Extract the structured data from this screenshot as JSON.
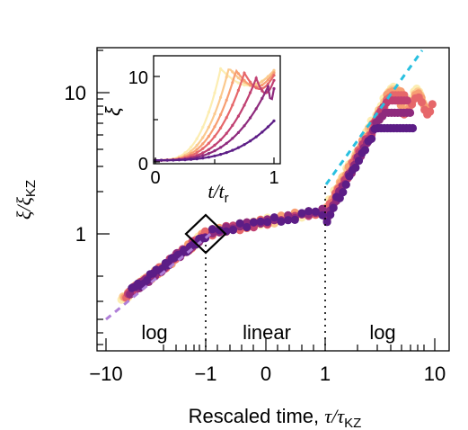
{
  "chart_data": [
    {
      "type": "scatter",
      "title": "",
      "xlabel": "Rescaled time, τ/τKZ",
      "xlabel_plain": "Rescaled time, ",
      "xlabel_math": "τ/τ",
      "xlabel_sub": "KZ",
      "ylabel": "ξ/ξKZ",
      "ylabel_math": "ξ/ξ",
      "ylabel_sub": "KZ",
      "x_scale": "piecewise log-linear-log",
      "y_scale": "log",
      "x_ticks": [
        "−10",
        "−1",
        "0",
        "1",
        "10"
      ],
      "y_ticks": [
        "1",
        "10"
      ],
      "regions": [
        "log",
        "linear",
        "log"
      ],
      "reference_lines": [
        {
          "name": "slope fit",
          "color": "#b07fd8",
          "style": "dashed"
        },
        {
          "name": "log growth fit",
          "color": "#29c0e0",
          "style": "dashed"
        }
      ],
      "vertical_markers_x": [
        -1,
        1
      ],
      "highlight_box_at": {
        "x": -1,
        "y": 1
      },
      "series_colors": [
        "#fcedb2",
        "#fbc98e",
        "#f79e72",
        "#e6676a",
        "#c04072",
        "#8e2a7d",
        "#5c1d86"
      ],
      "series_count": 7,
      "x_range": [
        -12,
        12
      ],
      "y_range": [
        0.22,
        20
      ]
    },
    {
      "type": "line",
      "title": "",
      "xlabel": "t/tr",
      "xlabel_math": "t/t",
      "xlabel_sub": "r",
      "ylabel": "ξ",
      "x_ticks": [
        "0",
        "1"
      ],
      "y_ticks": [
        "0",
        "10"
      ],
      "xlim": [
        0,
        1.05
      ],
      "ylim": [
        0,
        12.5
      ],
      "series_colors": [
        "#fcedb2",
        "#fbc98e",
        "#f79e72",
        "#e6676a",
        "#c04072",
        "#8e2a7d",
        "#5c1d86"
      ],
      "series_peaks": [
        {
          "t": 0.55,
          "xi": 10.9
        },
        {
          "t": 0.62,
          "xi": 11.0
        },
        {
          "t": 0.68,
          "xi": 10.7
        },
        {
          "t": 0.75,
          "xi": 10.4
        },
        {
          "t": 0.85,
          "xi": 9.8
        },
        {
          "t": 0.95,
          "xi": 8.8
        },
        {
          "t": 1.0,
          "xi": 4.8
        }
      ]
    }
  ]
}
